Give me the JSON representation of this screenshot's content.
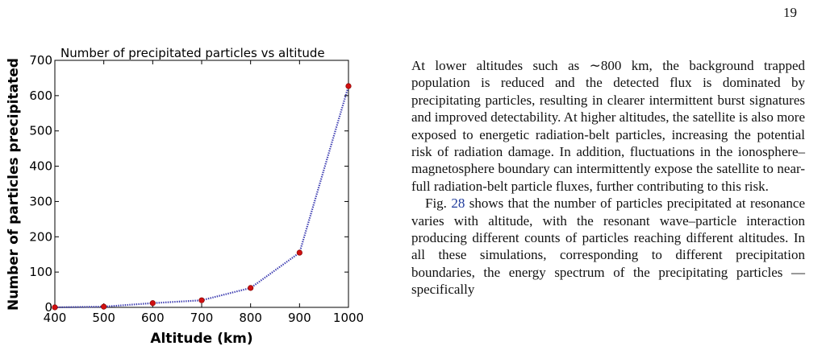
{
  "page": {
    "page_number": "19"
  },
  "text": {
    "paragraph_1": "At lower altitudes such as ∼800 km, the background trapped population is reduced and the detected flux is dominated by precipitating particles, resulting in clearer intermittent burst signatures and improved detectability. At higher altitudes, the satellite is also more exposed to energetic radiation-belt particles, increasing the potential risk of radiation damage. In addition, fluctuations in the ionosphere–magnetosphere boundary can intermittently expose the satellite to near-full radiation-belt particle fluxes, further contributing to this risk.",
    "paragraph_2_before": "Fig. ",
    "fig_ref": "28",
    "paragraph_2_after": " shows that the number of particles precipitated at resonance varies with altitude, with the resonant wave–particle interaction producing different counts of particles reaching different altitudes. In all these simulations, corresponding to different precipitation boundaries, the energy spectrum of the precipitating particles — specifically"
  },
  "chart_data": {
    "type": "line",
    "title": "Number of precipitated particles vs altitude",
    "xlabel": "Altitude (km)",
    "ylabel": "Number of particles precipitated",
    "x": [
      400,
      500,
      600,
      700,
      800,
      900,
      1000
    ],
    "y": [
      0,
      2,
      12,
      20,
      55,
      155,
      627
    ],
    "xlim": [
      400,
      1000
    ],
    "ylim": [
      0,
      700
    ],
    "xticks": [
      400,
      500,
      600,
      700,
      800,
      900,
      1000
    ],
    "yticks": [
      0,
      100,
      200,
      300,
      400,
      500,
      600,
      700
    ],
    "grid": false,
    "legend": "none",
    "line_color": "#3a3ab0",
    "line_style": "dotted",
    "marker_color": "#d01010"
  }
}
